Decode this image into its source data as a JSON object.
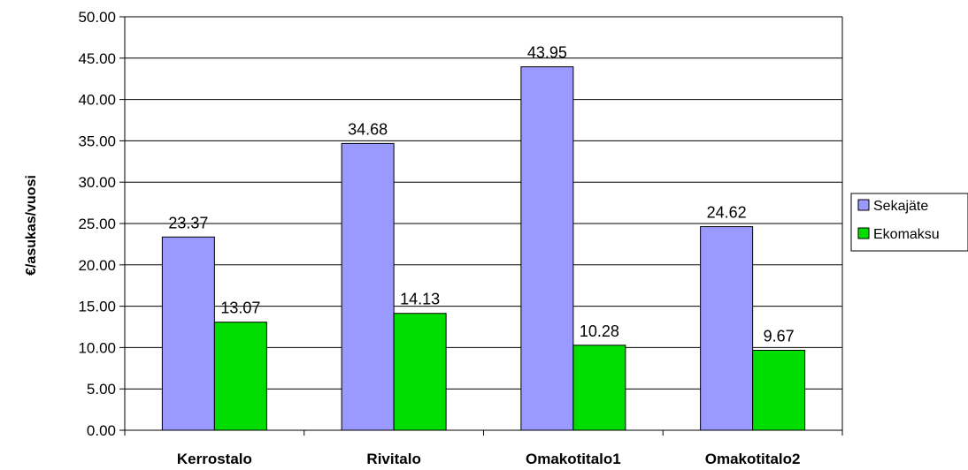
{
  "chart_data": {
    "type": "bar",
    "title": "",
    "xlabel": "",
    "ylabel": "€/asukas/vuosi",
    "categories": [
      "Kerrostalo",
      "Rivitalo",
      "Omakotitalo1",
      "Omakotitalo2"
    ],
    "series": [
      {
        "name": "Sekajäte",
        "values": [
          23.37,
          34.68,
          43.95,
          24.62
        ],
        "color": "#9999FF"
      },
      {
        "name": "Ekomaksu",
        "values": [
          13.07,
          14.13,
          10.28,
          9.67
        ],
        "color": "#00DD00"
      }
    ],
    "ylim": [
      0,
      50
    ],
    "ytick_labels": [
      "0.00",
      "5.00",
      "10.00",
      "15.00",
      "20.00",
      "25.00",
      "30.00",
      "35.00",
      "40.00",
      "45.00",
      "50.00"
    ],
    "data_labels": [
      [
        "23.37",
        "34.68",
        "43.95",
        "24.62"
      ],
      [
        "13.07",
        "14.13",
        "10.28",
        "9.67"
      ]
    ],
    "grid": true,
    "legend": "right"
  }
}
